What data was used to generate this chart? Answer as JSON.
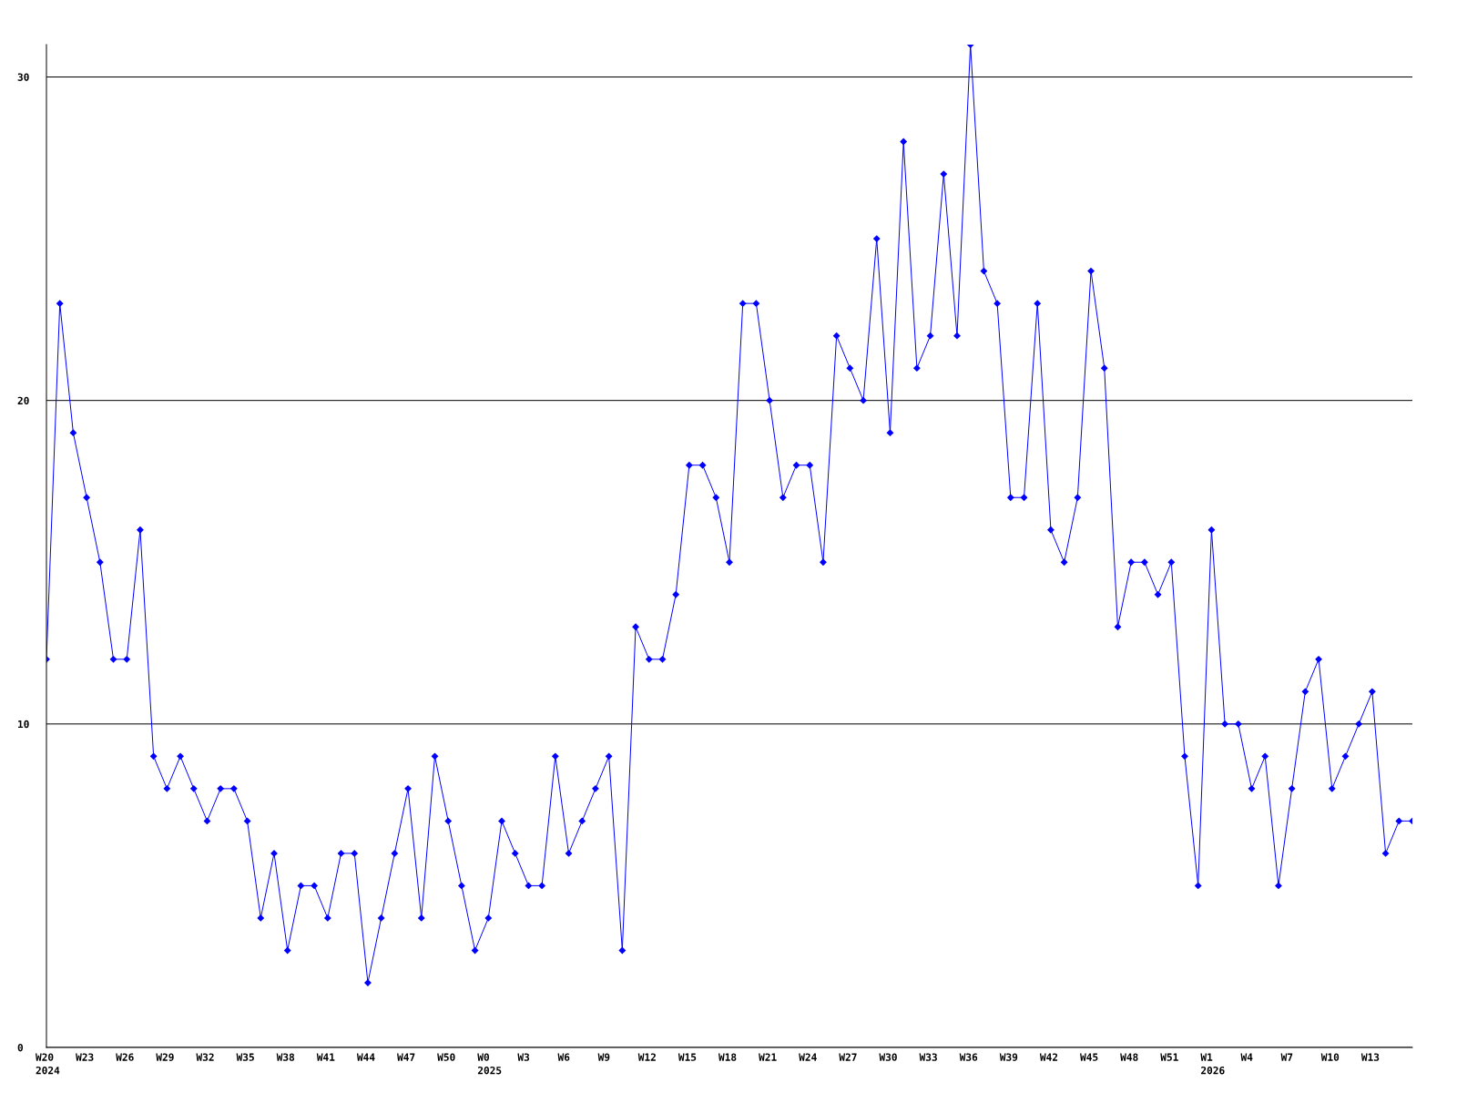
{
  "chart_data": {
    "type": "line",
    "categories": [
      "W20\n2024",
      null,
      null,
      "W23",
      null,
      null,
      "W26",
      null,
      null,
      "W29",
      null,
      null,
      "W32",
      null,
      null,
      "W35",
      null,
      null,
      "W38",
      null,
      null,
      "W41",
      null,
      null,
      "W44",
      null,
      null,
      "W47",
      null,
      null,
      "W50",
      null,
      null,
      "W0\n2025",
      null,
      null,
      "W3",
      null,
      null,
      "W6",
      null,
      null,
      "W9",
      null,
      null,
      "W12",
      null,
      null,
      "W15",
      null,
      null,
      "W18",
      null,
      null,
      "W21",
      null,
      null,
      "W24",
      null,
      null,
      "W27",
      null,
      null,
      "W30",
      null,
      null,
      "W33",
      null,
      null,
      "W36",
      null,
      null,
      "W39",
      null,
      null,
      "W42",
      null,
      null,
      "W45",
      null,
      null,
      "W48",
      null,
      null,
      "W51",
      null,
      null,
      "W1\n2026",
      null,
      null,
      "W4",
      null,
      null,
      "W7",
      null,
      null,
      "W10",
      null,
      null,
      "W13",
      null,
      null,
      null
    ],
    "series": [
      {
        "color": "#0000ff",
        "values": [
          12,
          23,
          19,
          17,
          15,
          12,
          12,
          16,
          9,
          8,
          9,
          8,
          7,
          8,
          8,
          7,
          4,
          6,
          3,
          5,
          5,
          4,
          6,
          6,
          2,
          4,
          6,
          8,
          4,
          9,
          7,
          5,
          3,
          4,
          7,
          6,
          5,
          5,
          9,
          6,
          7,
          8,
          9,
          3,
          13,
          12,
          12,
          14,
          18,
          18,
          17,
          15,
          23,
          23,
          20,
          17,
          18,
          18,
          15,
          22,
          21,
          20,
          25,
          19,
          28,
          21,
          22,
          27,
          22,
          31,
          24,
          23,
          17,
          17,
          23,
          16,
          15,
          17,
          24,
          21,
          13,
          15,
          15,
          14,
          15,
          9,
          5,
          16,
          10,
          10,
          8,
          9,
          5,
          8,
          11,
          12,
          8,
          9,
          10,
          11,
          6,
          7,
          7
        ]
      }
    ],
    "ylim": [
      0,
      31
    ],
    "yticks": [
      0,
      10,
      20,
      30
    ],
    "grid": "y",
    "marker": "diamond",
    "line_style": "solid"
  }
}
